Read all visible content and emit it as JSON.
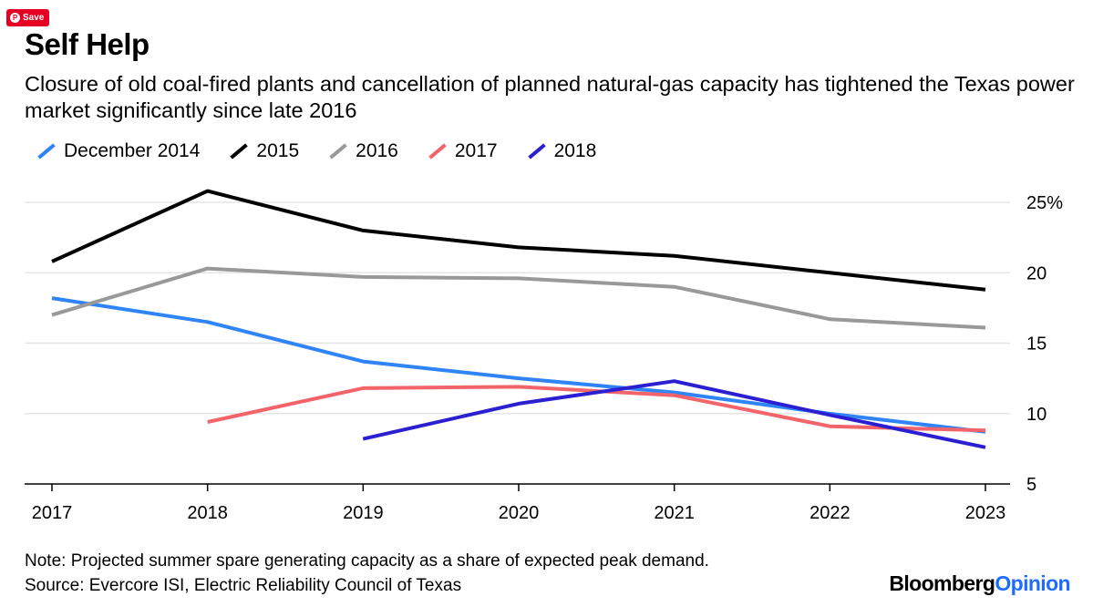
{
  "save_button": {
    "label": "Save"
  },
  "chart_data": {
    "type": "line",
    "title": "Self Help",
    "subtitle": "Closure of old coal-fired plants and cancellation of planned natural-gas capacity has tightened the Texas power market significantly since late 2016",
    "x": [
      "2017",
      "2018",
      "2019",
      "2020",
      "2021",
      "2022",
      "2023"
    ],
    "ylim": [
      5,
      27
    ],
    "yticks": [
      5,
      10,
      15,
      20,
      25
    ],
    "ytick_labels": [
      "5",
      "10",
      "15",
      "20",
      "25%"
    ],
    "xlabel": "",
    "ylabel": "",
    "grid": true,
    "legend_position": "top-left",
    "series": [
      {
        "name": "December 2014",
        "color": "#2f84f8",
        "values": [
          18.2,
          16.5,
          13.7,
          12.5,
          11.5,
          10.0,
          8.7
        ]
      },
      {
        "name": "2015",
        "color": "#000000",
        "values": [
          20.8,
          25.8,
          23.0,
          21.8,
          21.2,
          20.0,
          18.8
        ]
      },
      {
        "name": "2016",
        "color": "#999999",
        "values": [
          17.0,
          20.3,
          19.7,
          19.6,
          19.0,
          16.7,
          16.1
        ]
      },
      {
        "name": "2017",
        "color": "#f2646a",
        "values": [
          null,
          9.4,
          11.8,
          11.9,
          11.3,
          9.1,
          8.8
        ]
      },
      {
        "name": "2018",
        "color": "#2b1fd1",
        "values": [
          null,
          null,
          8.2,
          10.7,
          12.3,
          9.9,
          7.6
        ]
      }
    ]
  },
  "footer": {
    "note": "Note: Projected summer spare generating capacity as a share of expected peak demand.",
    "source": "Source: Evercore ISI, Electric Reliability Council of Texas",
    "brand_main": "Bloomberg",
    "brand_sub": "Opinion"
  }
}
